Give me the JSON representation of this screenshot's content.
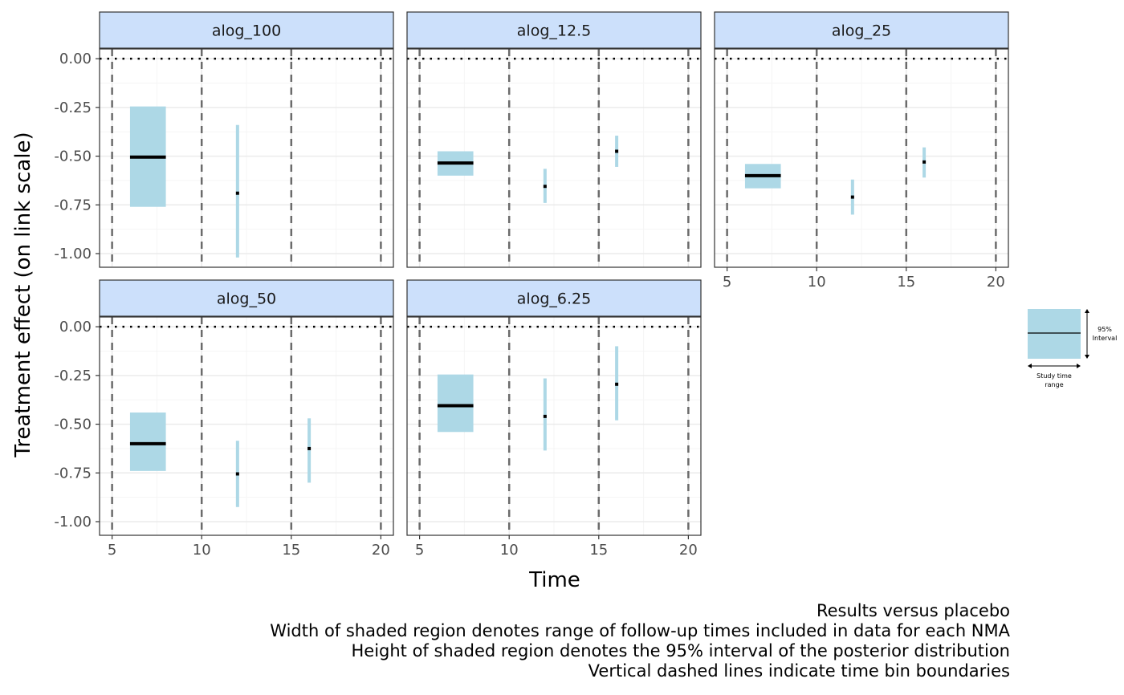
{
  "chart_data": {
    "type": "scatter",
    "x_label": "Time",
    "y_label": "Treatment effect (on link scale)",
    "x_ticks": [
      5,
      10,
      15,
      20
    ],
    "y_ticks": [
      "0.00",
      "-0.25",
      "-0.50",
      "-0.75",
      "-1.00"
    ],
    "x_range": [
      4.3,
      20.7
    ],
    "y_range": [
      -1.07,
      0.05
    ],
    "reference_line_y": 0,
    "bin_boundaries": [
      5,
      10,
      15,
      20
    ],
    "grid": true,
    "panels": [
      {
        "name": "alog_100",
        "estimates": [
          {
            "x_min": 6,
            "x_max": 8,
            "median": -0.505,
            "lower": -0.76,
            "upper": -0.245
          },
          {
            "x_min": 12,
            "x_max": 12,
            "median": -0.69,
            "lower": -1.02,
            "upper": -0.34
          }
        ]
      },
      {
        "name": "alog_12.5",
        "estimates": [
          {
            "x_min": 6,
            "x_max": 8,
            "median": -0.535,
            "lower": -0.6,
            "upper": -0.475
          },
          {
            "x_min": 12,
            "x_max": 12,
            "median": -0.655,
            "lower": -0.74,
            "upper": -0.565
          },
          {
            "x_min": 16,
            "x_max": 16,
            "median": -0.475,
            "lower": -0.555,
            "upper": -0.395
          }
        ]
      },
      {
        "name": "alog_25",
        "estimates": [
          {
            "x_min": 6,
            "x_max": 8,
            "median": -0.6,
            "lower": -0.665,
            "upper": -0.54
          },
          {
            "x_min": 12,
            "x_max": 12,
            "median": -0.71,
            "lower": -0.8,
            "upper": -0.62
          },
          {
            "x_min": 16,
            "x_max": 16,
            "median": -0.53,
            "lower": -0.61,
            "upper": -0.455
          }
        ]
      },
      {
        "name": "alog_50",
        "estimates": [
          {
            "x_min": 6,
            "x_max": 8,
            "median": -0.6,
            "lower": -0.74,
            "upper": -0.44
          },
          {
            "x_min": 12,
            "x_max": 12,
            "median": -0.755,
            "lower": -0.925,
            "upper": -0.585
          },
          {
            "x_min": 16,
            "x_max": 16,
            "median": -0.625,
            "lower": -0.8,
            "upper": -0.47
          }
        ]
      },
      {
        "name": "alog_6.25",
        "estimates": [
          {
            "x_min": 6,
            "x_max": 8,
            "median": -0.405,
            "lower": -0.54,
            "upper": -0.245
          },
          {
            "x_min": 12,
            "x_max": 12,
            "median": -0.46,
            "lower": -0.635,
            "upper": -0.265
          },
          {
            "x_min": 16,
            "x_max": 16,
            "median": -0.295,
            "lower": -0.48,
            "upper": -0.1
          }
        ]
      }
    ],
    "legend_key": {
      "interval_label": "95%\nInterval",
      "time_label": "Study time\nrange"
    },
    "captions": [
      "Results versus placebo",
      "Width of shaded region denotes range of follow-up times included in data for each NMA",
      "Height of shaded region denotes the 95% interval of the posterior distribution",
      "Vertical dashed lines indicate time bin boundaries"
    ],
    "colors": {
      "interval_fill": "#add8e6",
      "median_line": "#000000",
      "strip_fill": "#cce0fb",
      "dashed_line": "#6b6b6b",
      "grid_major": "#ebebeb",
      "grid_minor": "#f5f5f5"
    }
  }
}
